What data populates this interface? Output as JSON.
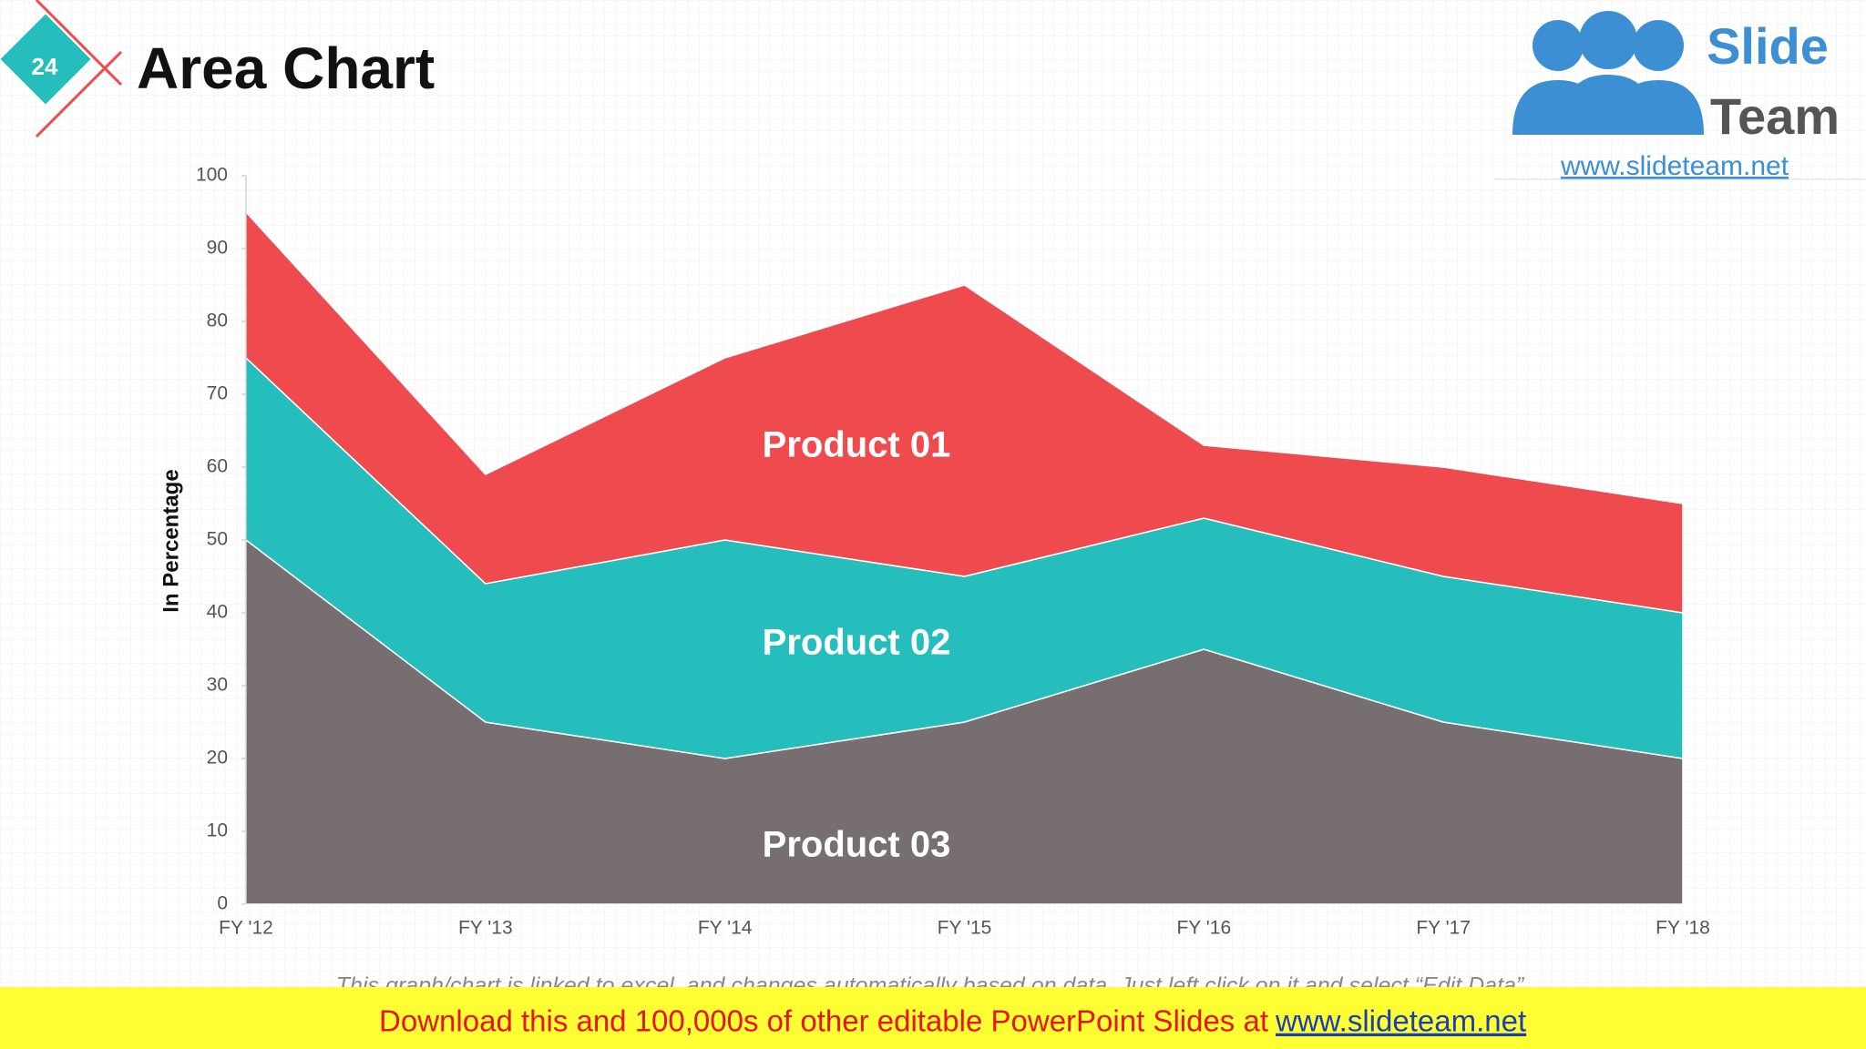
{
  "slide": {
    "number": "24",
    "title": "Area Chart",
    "logo_top": "Slide",
    "logo_bottom": "Team",
    "logo_url": "www.slideteam.net",
    "footnote": "This graph/chart is linked to excel, and changes automatically based on data. Just left click on it and select “Edit Data”.",
    "banner_text": "Download this and 100,000s of other editable PowerPoint Slides at",
    "banner_link": "www.slideteam.net"
  },
  "chart_data": {
    "type": "stacked-area",
    "y_label": "In Percentage",
    "categories": [
      "FY '12",
      "FY '13",
      "FY '14",
      "FY '15",
      "FY '16",
      "FY '17",
      "FY '18"
    ],
    "series": [
      {
        "name": "Product 01",
        "color": "#ef4b4f",
        "values": [
          20,
          15,
          25,
          40,
          10,
          15,
          15
        ]
      },
      {
        "name": "Product 02",
        "color": "#26bdbd",
        "values": [
          25,
          19,
          30,
          20,
          18,
          20,
          20
        ]
      },
      {
        "name": "Product 03",
        "color": "#766e71",
        "values": [
          50,
          25,
          20,
          25,
          35,
          25,
          20
        ]
      }
    ],
    "ylim": [
      0,
      100
    ],
    "yticks": [
      0,
      10,
      20,
      30,
      40,
      50,
      60,
      70,
      80,
      90,
      100
    ]
  }
}
